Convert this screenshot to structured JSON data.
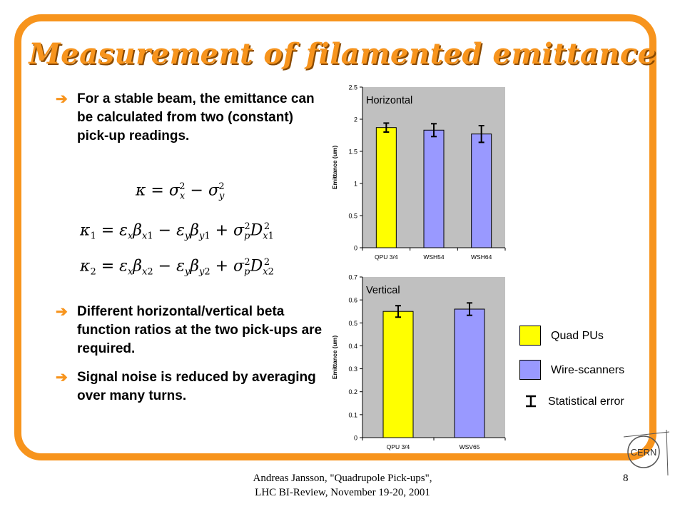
{
  "slide": {
    "title": "Measurement of filamented emittance",
    "bullets": [
      "For a stable beam, the emittance can be calculated from two (constant) pick-up readings.",
      "Different horizontal/vertical beta function ratios at the two pick-ups are required.",
      "Signal noise is reduced by averaging over many turns."
    ],
    "footer_line1": "Andreas Jansson, \"Quadrupole Pick-ups\",",
    "footer_line2": "LHC BI-Review, November 19-20, 2001",
    "page_number": "8",
    "logo_text": "CERN"
  },
  "colors": {
    "frame": "#f7941d",
    "quad": "#ffff00",
    "wire": "#9999ff",
    "plot_bg": "#c0c0c0"
  },
  "legend": {
    "quad_label": "Quad PUs",
    "wire_label": "Wire-scanners",
    "error_label": "Statistical error"
  },
  "chart_data": [
    {
      "type": "bar",
      "title": "Horizontal",
      "xlabel": "",
      "ylabel": "Emittance (um)",
      "categories": [
        "QPU 3/4",
        "WSH54",
        "WSH64"
      ],
      "values": [
        1.87,
        1.83,
        1.77
      ],
      "errors": [
        0.07,
        0.1,
        0.13
      ],
      "kinds": [
        "quad",
        "wire",
        "wire"
      ],
      "ylim": [
        0,
        2.5
      ],
      "yticks": [
        "0",
        "0.5",
        "1",
        "1.5",
        "2",
        "2.5"
      ],
      "ytick_values": [
        0,
        0.5,
        1,
        1.5,
        2,
        2.5
      ],
      "grid": false
    },
    {
      "type": "bar",
      "title": "Vertical",
      "xlabel": "",
      "ylabel": "Emittance (um)",
      "categories": [
        "QPU 3/4",
        "WSV65"
      ],
      "values": [
        0.55,
        0.56
      ],
      "errors": [
        0.025,
        0.027
      ],
      "kinds": [
        "quad",
        "wire"
      ],
      "ylim": [
        0,
        0.7
      ],
      "yticks": [
        "0",
        "0.1",
        "0.2",
        "0.3",
        "0.4",
        "0.5",
        "0.6",
        "0.7"
      ],
      "ytick_values": [
        0,
        0.1,
        0.2,
        0.3,
        0.4,
        0.5,
        0.6,
        0.7
      ],
      "grid": false
    }
  ]
}
